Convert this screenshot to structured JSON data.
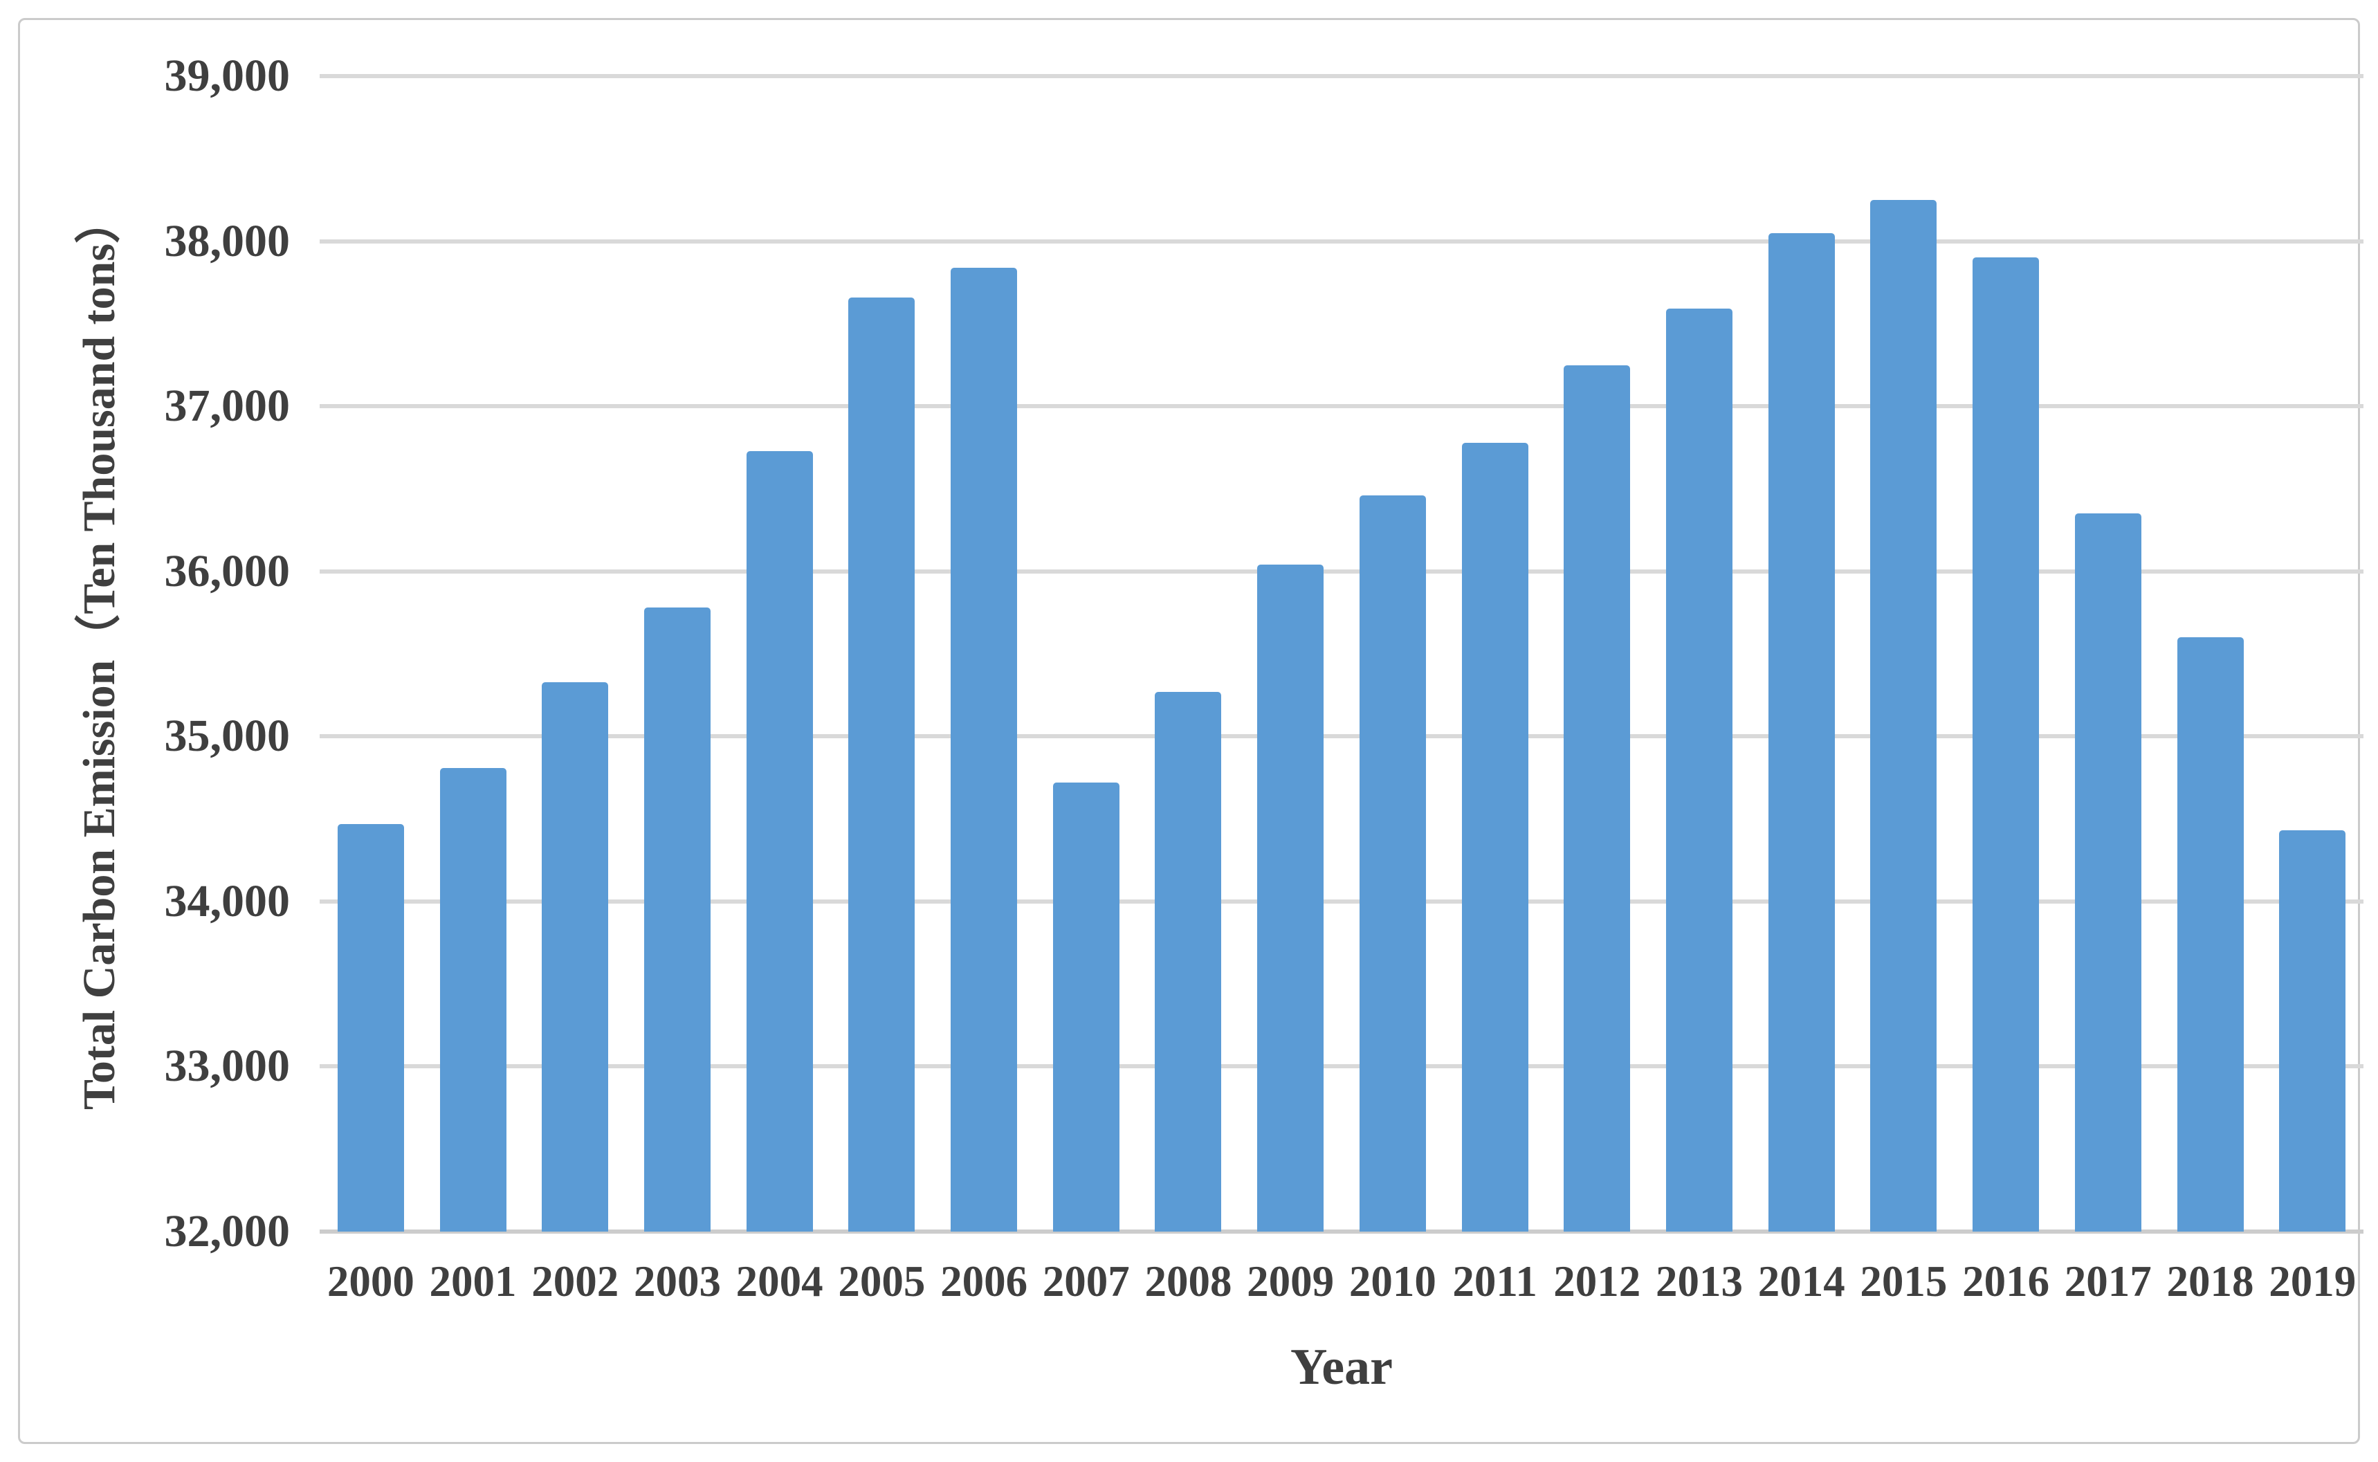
{
  "chart_data": {
    "type": "bar",
    "title": "",
    "categories": [
      "2000",
      "2001",
      "2002",
      "2003",
      "2004",
      "2005",
      "2006",
      "2007",
      "2008",
      "2009",
      "2010",
      "2011",
      "2012",
      "2013",
      "2014",
      "2015",
      "2016",
      "2017",
      "2018",
      "2019"
    ],
    "values": [
      34470,
      34810,
      35330,
      35780,
      36730,
      37660,
      37840,
      34720,
      35270,
      36040,
      36460,
      36780,
      37250,
      37590,
      38050,
      38250,
      37900,
      36350,
      35600,
      34430
    ],
    "series_name": "Total Carbon Emission",
    "xlabel": "Year",
    "ylabel": "Total Carbon Emission（Ten Thousand tons）",
    "ylim": [
      32000,
      39000
    ],
    "ytick_step": 1000,
    "ytick_labels": [
      "39,000",
      "38,000",
      "37,000",
      "36,000",
      "35,000",
      "34,000",
      "33,000",
      "32,000"
    ],
    "grid": "horizontal-gridlines-on",
    "legend": "none",
    "bar_color": "#5B9BD5",
    "gridline_color": "#D9D9D9",
    "axis_line_color": "#CCCCCC",
    "text_color": "#3F3F3F",
    "background_color": "#FFFFFF",
    "border_color": "#CBCBCB"
  }
}
